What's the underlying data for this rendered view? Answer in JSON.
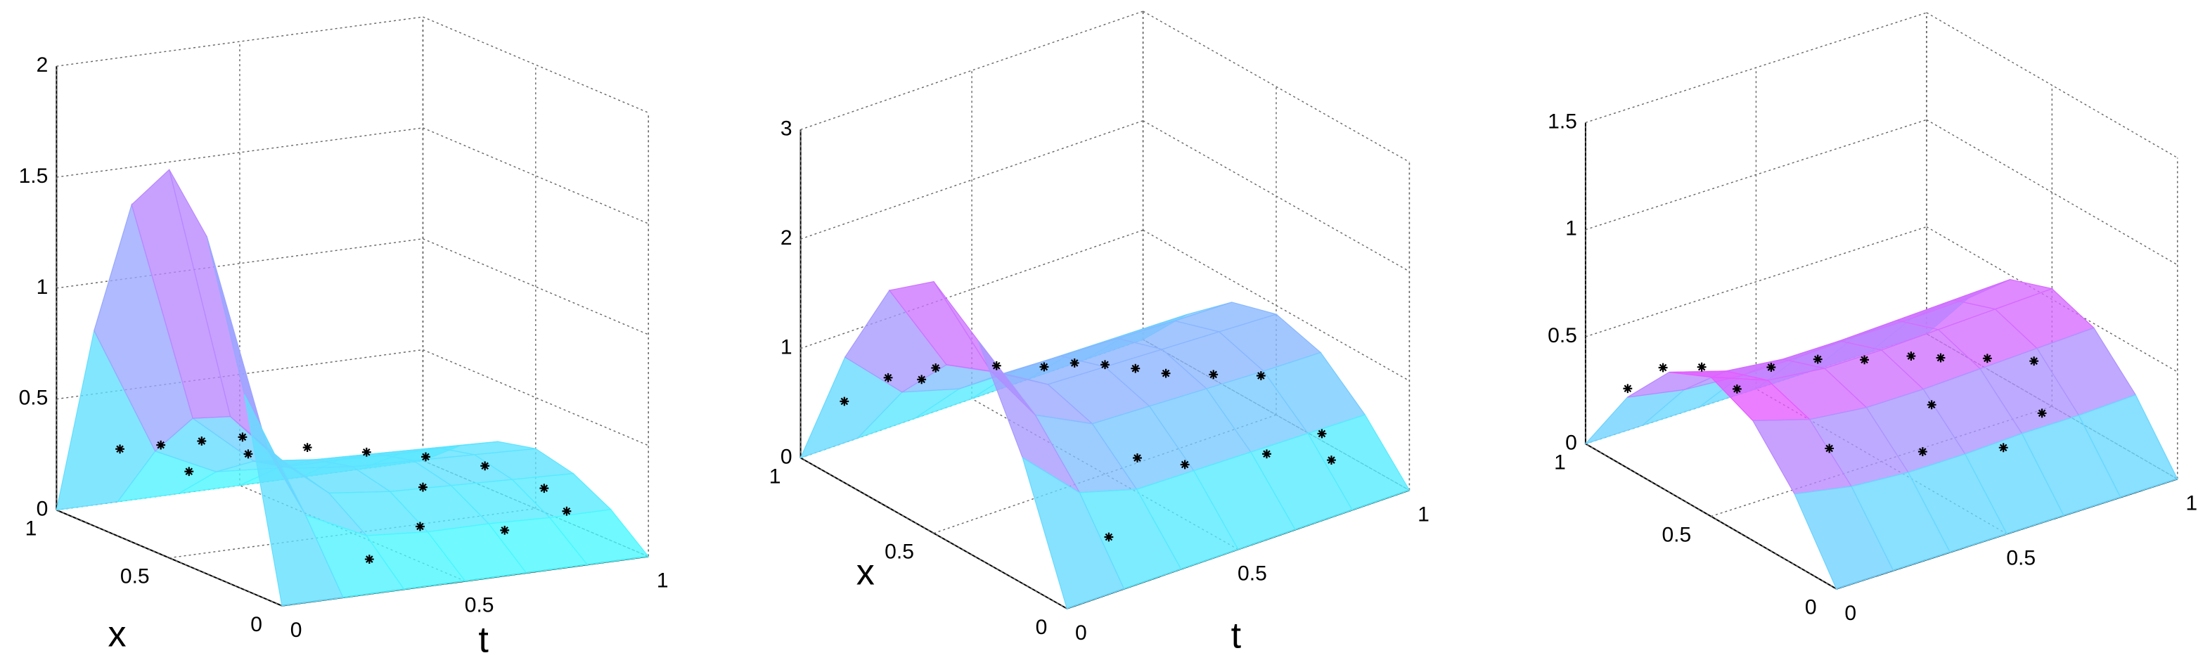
{
  "charts": [
    {
      "type": "surface",
      "x_label": "x",
      "t_label": "t",
      "tlim": [
        0,
        1
      ],
      "xlim": [
        0,
        1
      ],
      "zlim": [
        0,
        2
      ],
      "tticks": [
        0,
        0.5,
        1
      ],
      "xticks": [
        0,
        0.5,
        1
      ],
      "zticks": [
        0,
        0.5,
        1,
        1.5,
        2
      ],
      "grid_t": [
        0,
        0.1667,
        0.3333,
        0.5,
        0.6667,
        0.8333,
        1
      ],
      "grid_x": [
        0,
        0.1667,
        0.3333,
        0.5,
        0.6667,
        0.8333,
        1
      ],
      "z": [
        [
          0,
          0.88,
          1.52,
          1.75,
          1.52,
          0.88,
          0
        ],
        [
          0,
          0.3,
          0.52,
          0.6,
          0.52,
          0.3,
          0
        ],
        [
          0,
          0.17,
          0.29,
          0.33,
          0.29,
          0.17,
          0
        ],
        [
          0,
          0.15,
          0.26,
          0.3,
          0.26,
          0.15,
          0
        ],
        [
          0,
          0.15,
          0.25,
          0.29,
          0.25,
          0.15,
          0
        ],
        [
          0,
          0.14,
          0.24,
          0.28,
          0.24,
          0.14,
          0
        ],
        [
          0,
          0.14,
          0.23,
          0.27,
          0.23,
          0.14,
          0
        ]
      ],
      "points": {
        "t": [
          0.05,
          0.1,
          0.15,
          0.2,
          0.3,
          0.4,
          0.5,
          0.6,
          0.7,
          0.8,
          0.9,
          0.5,
          0.7,
          0.9,
          0.3,
          0.6
        ],
        "x": [
          0.8,
          0.7,
          0.6,
          0.5,
          0.9,
          0.8,
          0.7,
          0.6,
          0.5,
          0.4,
          0.3,
          0.2,
          0.15,
          0.2,
          0.1,
          0.35
        ],
        "z": [
          0.35,
          0.4,
          0.45,
          0.5,
          0.15,
          0.25,
          0.3,
          0.3,
          0.3,
          0.28,
          0.2,
          0.16,
          0.12,
          0.14,
          0.1,
          0.25
        ]
      }
    },
    {
      "type": "surface",
      "x_label": "x",
      "t_label": "t",
      "tlim": [
        0,
        1
      ],
      "xlim": [
        0,
        1
      ],
      "zlim": [
        0,
        3
      ],
      "tticks": [
        0,
        0.5,
        1
      ],
      "xticks": [
        0,
        0.5,
        1
      ],
      "zticks": [
        0,
        1,
        2,
        3
      ],
      "grid_t": [
        0,
        0.1667,
        0.3333,
        0.5,
        0.6667,
        0.8333,
        1
      ],
      "grid_x": [
        0,
        0.1667,
        0.3333,
        0.5,
        0.6667,
        0.8333,
        1
      ],
      "z": [
        [
          0,
          1.15,
          1.99,
          2.3,
          1.99,
          1.15,
          0
        ],
        [
          0,
          0.65,
          1.13,
          1.3,
          1.13,
          0.65,
          0
        ],
        [
          0,
          0.5,
          0.87,
          1,
          0.87,
          0.5,
          0
        ],
        [
          0,
          0.49,
          0.85,
          0.98,
          0.85,
          0.49,
          0
        ],
        [
          0,
          0.48,
          0.83,
          0.96,
          0.83,
          0.48,
          0
        ],
        [
          0,
          0.47,
          0.81,
          0.94,
          0.81,
          0.47,
          0
        ],
        [
          0,
          0.46,
          0.8,
          0.92,
          0.8,
          0.46,
          0
        ]
      ],
      "points": {
        "t": [
          0.05,
          0.1,
          0.12,
          0.2,
          0.3,
          0.4,
          0.45,
          0.5,
          0.55,
          0.6,
          0.7,
          0.8,
          0.5,
          0.7,
          0.85,
          0.2,
          0.4,
          0.9
        ],
        "x": [
          0.9,
          0.8,
          0.7,
          0.75,
          0.65,
          0.6,
          0.55,
          0.5,
          0.45,
          0.4,
          0.35,
          0.3,
          0.2,
          0.15,
          0.1,
          0.1,
          0.25,
          0.2
        ],
        "z": [
          0.6,
          0.9,
          1.0,
          0.95,
          1.0,
          0.95,
          1.0,
          1.0,
          0.98,
          0.95,
          0.9,
          0.85,
          0.5,
          0.45,
          0.3,
          0.3,
          0.6,
          0.35
        ]
      }
    },
    {
      "type": "surface",
      "tlim": [
        0,
        1
      ],
      "xlim": [
        0,
        1
      ],
      "zlim": [
        0,
        1.5
      ],
      "tticks": [
        0,
        0.5,
        1
      ],
      "xticks": [
        0,
        0.5,
        1
      ],
      "zticks": [
        0,
        0.5,
        1,
        1.5
      ],
      "grid_t": [
        0,
        0.1667,
        0.3333,
        0.5,
        0.6667,
        0.8333,
        1
      ],
      "grid_x": [
        0,
        0.1667,
        0.3333,
        0.5,
        0.6667,
        0.8333,
        1
      ],
      "z": [
        [
          0,
          0.33,
          0.56,
          0.65,
          0.56,
          0.33,
          0
        ],
        [
          0,
          0.28,
          0.48,
          0.55,
          0.48,
          0.28,
          0
        ],
        [
          0,
          0.26,
          0.45,
          0.52,
          0.45,
          0.26,
          0
        ],
        [
          0,
          0.26,
          0.45,
          0.52,
          0.45,
          0.26,
          0
        ],
        [
          0,
          0.27,
          0.46,
          0.53,
          0.46,
          0.27,
          0
        ],
        [
          0,
          0.27,
          0.47,
          0.54,
          0.47,
          0.27,
          0
        ],
        [
          0,
          0.28,
          0.48,
          0.55,
          0.48,
          0.28,
          0
        ]
      ],
      "points": {
        "t": [
          0.05,
          0.08,
          0.12,
          0.15,
          0.25,
          0.35,
          0.45,
          0.55,
          0.6,
          0.7,
          0.8,
          0.4,
          0.6,
          0.75,
          0.2,
          0.5
        ],
        "x": [
          0.9,
          0.8,
          0.7,
          0.6,
          0.6,
          0.55,
          0.5,
          0.45,
          0.4,
          0.35,
          0.3,
          0.2,
          0.15,
          0.2,
          0.3,
          0.3
        ],
        "z": [
          0.3,
          0.45,
          0.5,
          0.45,
          0.5,
          0.52,
          0.5,
          0.5,
          0.5,
          0.48,
          0.45,
          0.3,
          0.25,
          0.3,
          0.35,
          0.4
        ]
      }
    }
  ]
}
